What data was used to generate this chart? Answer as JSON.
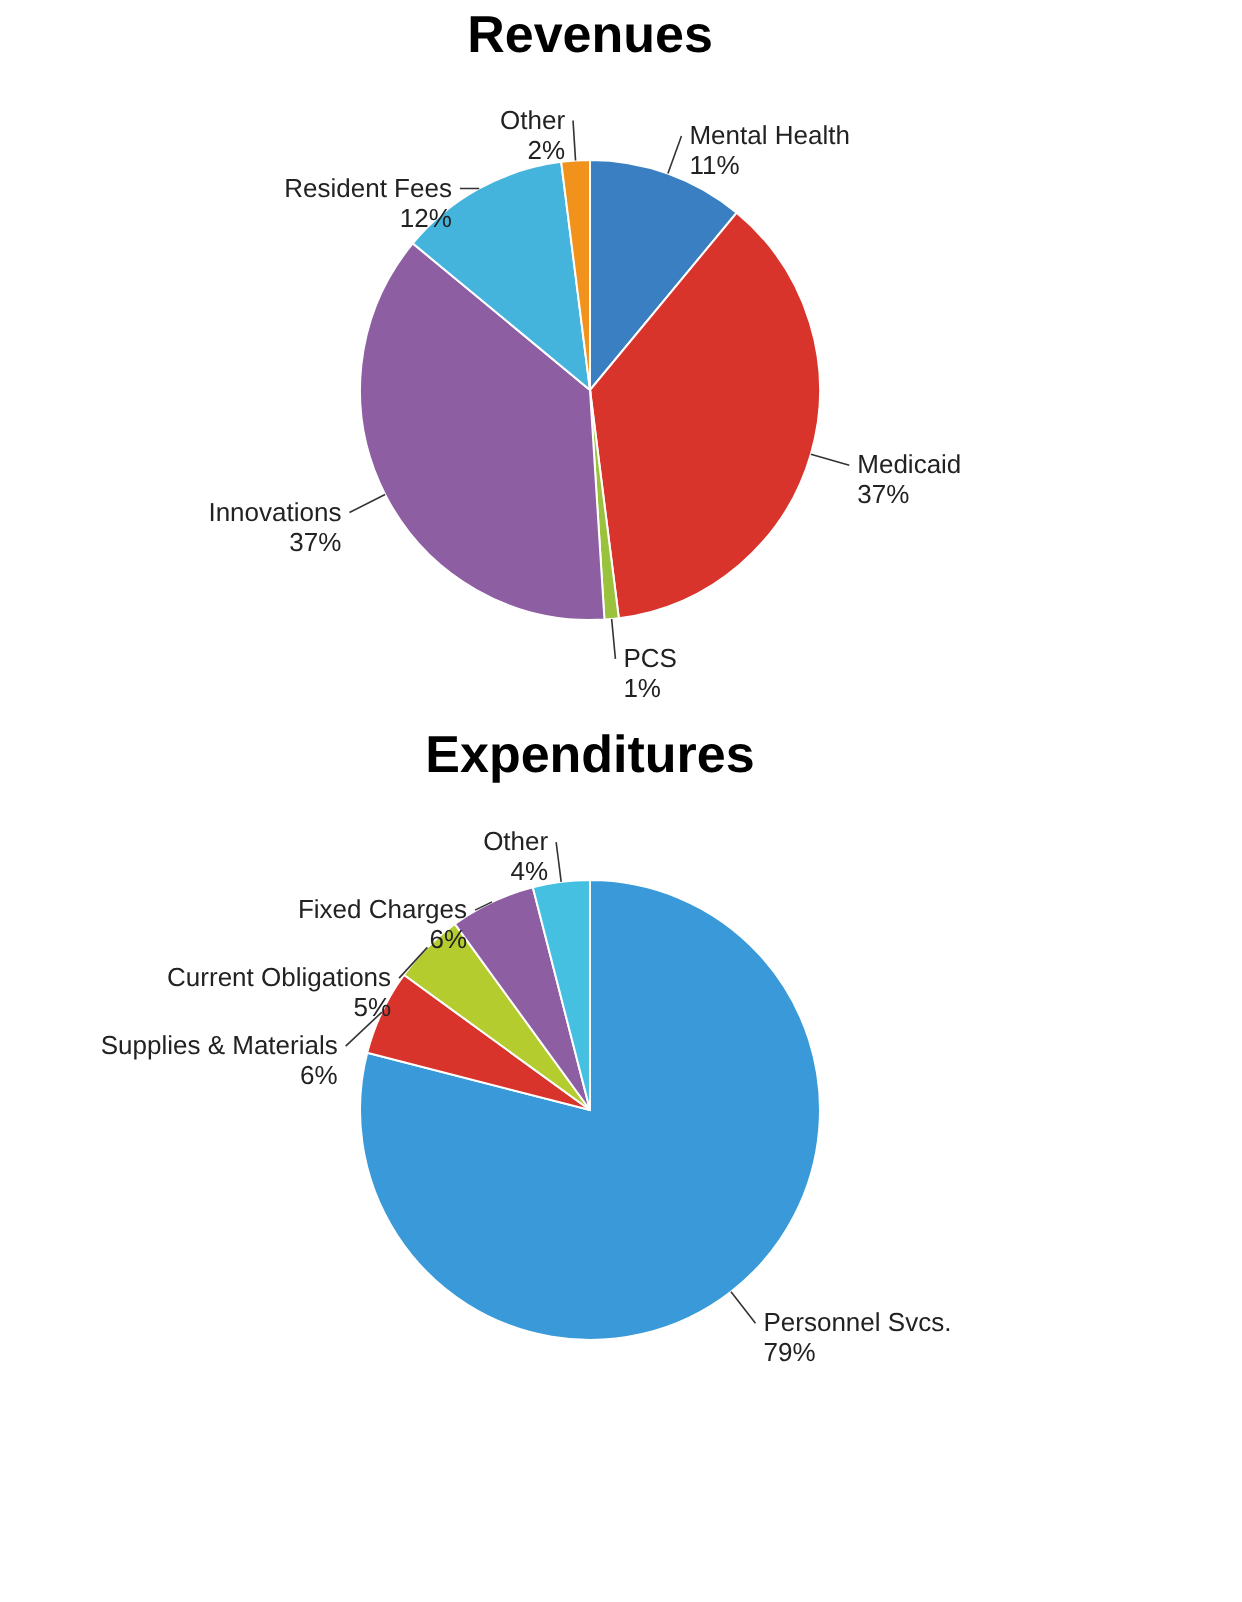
{
  "chart_data": [
    {
      "type": "pie",
      "title": "Revenues",
      "categories": [
        "Mental Health",
        "Medicaid",
        "PCS",
        "Innovations",
        "Resident Fees",
        "Other"
      ],
      "values": [
        11,
        37,
        1,
        37,
        12,
        2
      ],
      "value_labels": [
        "11%",
        "37%",
        "1%",
        "37%",
        "12%",
        "2%"
      ],
      "colors": [
        "#3a7fc1",
        "#d9342b",
        "#9bc23c",
        "#8e5ea2",
        "#45b4dc",
        "#f0921c"
      ],
      "legend": false
    },
    {
      "type": "pie",
      "title": "Expenditures",
      "categories": [
        "Personnel Svcs.",
        "Supplies & Materials",
        "Current Obligations",
        "Fixed Charges",
        "Other"
      ],
      "values": [
        79,
        6,
        5,
        6,
        4
      ],
      "value_labels": [
        "79%",
        "6%",
        "5%",
        "6%",
        "4%"
      ],
      "colors": [
        "#3a9ad9",
        "#d9342b",
        "#b5cc2e",
        "#8e5ea2",
        "#45c0e0"
      ],
      "legend": false
    }
  ]
}
